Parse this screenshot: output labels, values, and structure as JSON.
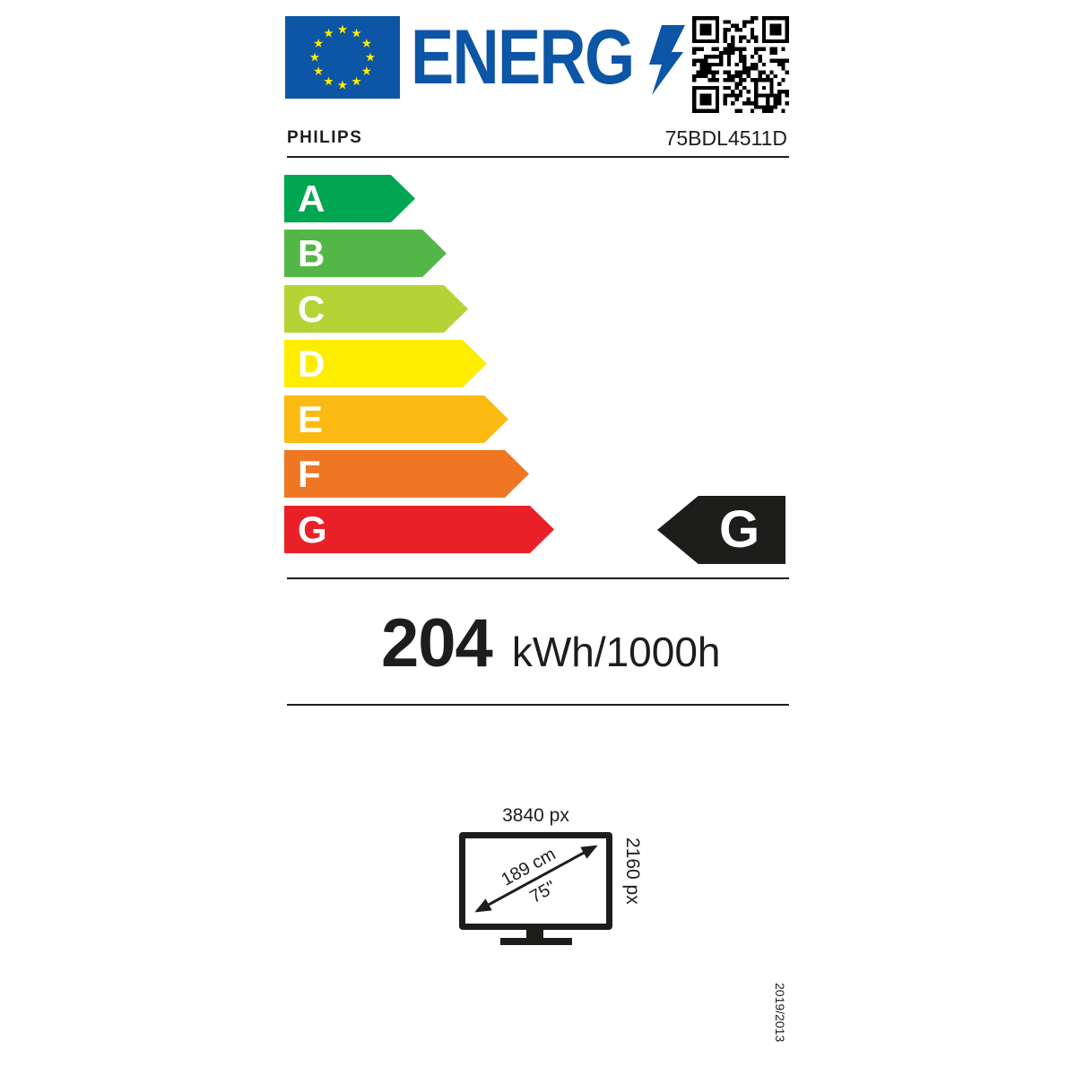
{
  "header": {
    "logo_text": "ENERG",
    "logo_color": "#0d55a5",
    "eu_flag_icon": "eu-flag",
    "lightning_icon": "lightning-bolt",
    "qr_icon": "qr-code"
  },
  "supplier": {
    "brand": "PHILIPS",
    "model": "75BDL4511D"
  },
  "energy_scale": {
    "classes": [
      {
        "label": "A",
        "color": "#00a651"
      },
      {
        "label": "B",
        "color": "#52b747"
      },
      {
        "label": "C",
        "color": "#b5d334"
      },
      {
        "label": "D",
        "color": "#ffed00"
      },
      {
        "label": "E",
        "color": "#fbba12"
      },
      {
        "label": "F",
        "color": "#ef7622"
      },
      {
        "label": "G",
        "color": "#e92028"
      }
    ],
    "rated_class": "G",
    "rated_arrow_color": "#1d1d1b"
  },
  "consumption": {
    "value": "204",
    "unit": "kWh/1000h"
  },
  "screen": {
    "horizontal_resolution": "3840 px",
    "vertical_resolution": "2160 px",
    "diagonal_cm": "189 cm",
    "diagonal_inch": "75\""
  },
  "regulation": "2019/2013"
}
